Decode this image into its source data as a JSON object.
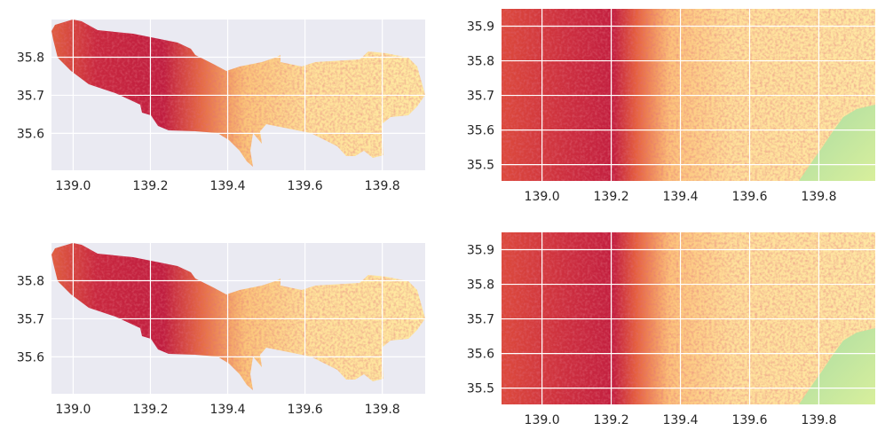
{
  "chart_data": [
    {
      "type": "heatmap",
      "panel": "top-left",
      "colormap": "Spectral",
      "masked_to_region": true,
      "xlim": [
        138.944,
        139.911
      ],
      "ylim": [
        35.503,
        35.899
      ],
      "xticks": [
        "139.0",
        "139.2",
        "139.4",
        "139.6",
        "139.8"
      ],
      "yticks": [
        "35.6",
        "35.7",
        "35.8"
      ],
      "grid": true,
      "background_color": "#EAEAF2"
    },
    {
      "type": "heatmap",
      "panel": "top-right",
      "colormap": "Spectral",
      "masked_to_region": false,
      "xlim": [
        138.883,
        139.963
      ],
      "ylim": [
        35.453,
        35.95
      ],
      "xticks": [
        "139.0",
        "139.2",
        "139.4",
        "139.6",
        "139.8"
      ],
      "yticks": [
        "35.5",
        "35.6",
        "35.7",
        "35.8",
        "35.9"
      ],
      "grid": true,
      "background_color": "#EAEAF2"
    },
    {
      "type": "heatmap",
      "panel": "bottom-left",
      "colormap": "Spectral",
      "masked_to_region": true,
      "xlim": [
        138.944,
        139.911
      ],
      "ylim": [
        35.503,
        35.899
      ],
      "xticks": [
        "139.0",
        "139.2",
        "139.4",
        "139.6",
        "139.8"
      ],
      "yticks": [
        "35.6",
        "35.7",
        "35.8"
      ],
      "grid": true,
      "background_color": "#EAEAF2"
    },
    {
      "type": "heatmap",
      "panel": "bottom-right",
      "colormap": "Spectral",
      "masked_to_region": false,
      "xlim": [
        138.883,
        139.963
      ],
      "ylim": [
        35.453,
        35.95
      ],
      "xticks": [
        "139.0",
        "139.2",
        "139.4",
        "139.6",
        "139.8"
      ],
      "yticks": [
        "35.5",
        "35.6",
        "35.7",
        "35.8",
        "35.9"
      ],
      "grid": true,
      "background_color": "#EAEAF2"
    }
  ]
}
